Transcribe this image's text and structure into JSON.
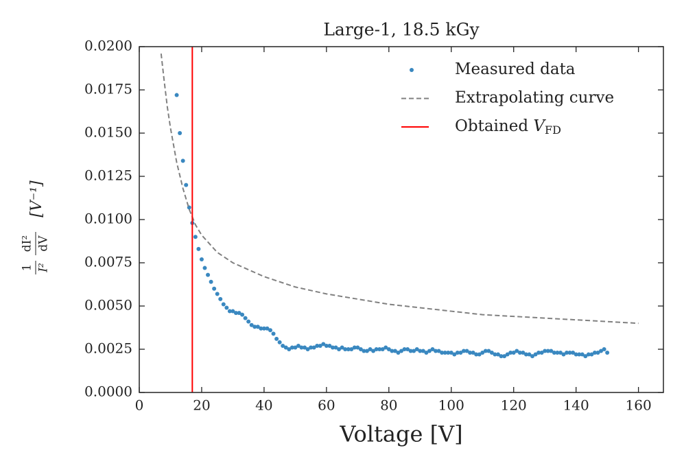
{
  "chart_data": {
    "type": "scatter",
    "title": "Large-1, 18.5 kGy",
    "x_label": "Voltage [V]",
    "y_label": {
      "num_1": "1",
      "den_1": "I²",
      "num_2": "dI²",
      "den_2": "dV",
      "unit": "[V⁻¹]"
    },
    "xlim": [
      0,
      168
    ],
    "ylim": [
      0,
      0.02
    ],
    "xticks": [
      0,
      20,
      40,
      60,
      80,
      100,
      120,
      140,
      160
    ],
    "yticks": [
      {
        "value": 0,
        "label": "0.0000"
      },
      {
        "value": 0.0025,
        "label": "0.0025"
      },
      {
        "value": 0.005,
        "label": "0.0050"
      },
      {
        "value": 0.0075,
        "label": "0.0075"
      },
      {
        "value": 0.01,
        "label": "0.0100"
      },
      {
        "value": 0.0125,
        "label": "0.0125"
      },
      {
        "value": 0.015,
        "label": "0.0150"
      },
      {
        "value": 0.0175,
        "label": "0.0175"
      },
      {
        "value": 0.02,
        "label": "0.0200"
      }
    ],
    "legend": "upper right",
    "series": [
      {
        "name": "Measured data",
        "style": "points",
        "color": "#3a88c0",
        "x": [
          12,
          13,
          14,
          15,
          16,
          17,
          18,
          19,
          20,
          21,
          22,
          23,
          24,
          25,
          26,
          27,
          28,
          29,
          30,
          31,
          32,
          33,
          34,
          35,
          36,
          37,
          38,
          39,
          40,
          41,
          42,
          43,
          44,
          45,
          46,
          47,
          48,
          49,
          50,
          51,
          52,
          53,
          54,
          55,
          56,
          57,
          58,
          59,
          60,
          61,
          62,
          63,
          64,
          65,
          66,
          67,
          68,
          69,
          70,
          71,
          72,
          73,
          74,
          75,
          76,
          77,
          78,
          79,
          80,
          81,
          82,
          83,
          84,
          85,
          86,
          87,
          88,
          89,
          90,
          91,
          92,
          93,
          94,
          95,
          96,
          97,
          98,
          99,
          100,
          101,
          102,
          103,
          104,
          105,
          106,
          107,
          108,
          109,
          110,
          111,
          112,
          113,
          114,
          115,
          116,
          117,
          118,
          119,
          120,
          121,
          122,
          123,
          124,
          125,
          126,
          127,
          128,
          129,
          130,
          131,
          132,
          133,
          134,
          135,
          136,
          137,
          138,
          139,
          140,
          141,
          142,
          143,
          144,
          145,
          146,
          147,
          148,
          149,
          150
        ],
        "values": [
          0.0172,
          0.015,
          0.0134,
          0.012,
          0.0107,
          0.0098,
          0.009,
          0.0083,
          0.0077,
          0.0072,
          0.0068,
          0.0064,
          0.006,
          0.0057,
          0.0054,
          0.0051,
          0.0049,
          0.0047,
          0.0047,
          0.0046,
          0.0046,
          0.0045,
          0.0043,
          0.0041,
          0.0039,
          0.0038,
          0.0038,
          0.0037,
          0.0037,
          0.0037,
          0.0036,
          0.0034,
          0.0031,
          0.0029,
          0.0027,
          0.0026,
          0.0025,
          0.0026,
          0.0026,
          0.0027,
          0.0026,
          0.0026,
          0.0025,
          0.0026,
          0.0026,
          0.0027,
          0.0027,
          0.0028,
          0.0027,
          0.0027,
          0.0026,
          0.0026,
          0.0025,
          0.0026,
          0.0025,
          0.0025,
          0.0025,
          0.0026,
          0.0026,
          0.0025,
          0.0024,
          0.0024,
          0.0025,
          0.0024,
          0.0025,
          0.0025,
          0.0025,
          0.0026,
          0.0025,
          0.0024,
          0.0024,
          0.0023,
          0.0024,
          0.0025,
          0.0025,
          0.0024,
          0.0024,
          0.0025,
          0.0024,
          0.0024,
          0.0023,
          0.0024,
          0.0025,
          0.0024,
          0.0024,
          0.0023,
          0.0023,
          0.0023,
          0.0023,
          0.0022,
          0.0023,
          0.0023,
          0.0024,
          0.0024,
          0.0023,
          0.0023,
          0.0022,
          0.0022,
          0.0023,
          0.0024,
          0.0024,
          0.0023,
          0.0022,
          0.0022,
          0.0021,
          0.0021,
          0.0022,
          0.0023,
          0.0023,
          0.0024,
          0.0023,
          0.0023,
          0.0022,
          0.0022,
          0.0021,
          0.0022,
          0.0023,
          0.0023,
          0.0024,
          0.0024,
          0.0024,
          0.0023,
          0.0023,
          0.0023,
          0.0022,
          0.0023,
          0.0023,
          0.0023,
          0.0022,
          0.0022,
          0.0022,
          0.0021,
          0.0022,
          0.0022,
          0.0023,
          0.0023,
          0.0024,
          0.0025,
          0.0023
        ]
      },
      {
        "name": "Extrapolating curve",
        "style": "dashed",
        "color": "#808080",
        "x": [
          7,
          8,
          9,
          10,
          12,
          14,
          16,
          18,
          20,
          25,
          30,
          35,
          40,
          50,
          60,
          70,
          80,
          90,
          100,
          110,
          120,
          130,
          140,
          150,
          160
        ],
        "values": [
          0.0196,
          0.018,
          0.0165,
          0.0153,
          0.0133,
          0.0118,
          0.0106,
          0.0097,
          0.0091,
          0.0081,
          0.0075,
          0.0071,
          0.0067,
          0.0061,
          0.0057,
          0.0054,
          0.0051,
          0.0049,
          0.0047,
          0.0045,
          0.0044,
          0.0043,
          0.0042,
          0.0041,
          0.004
        ]
      },
      {
        "name": "Obtained ",
        "name_italic": "V",
        "name_sub": "FD",
        "style": "vline",
        "color": "#ff0000",
        "x": [
          17
        ]
      }
    ]
  }
}
